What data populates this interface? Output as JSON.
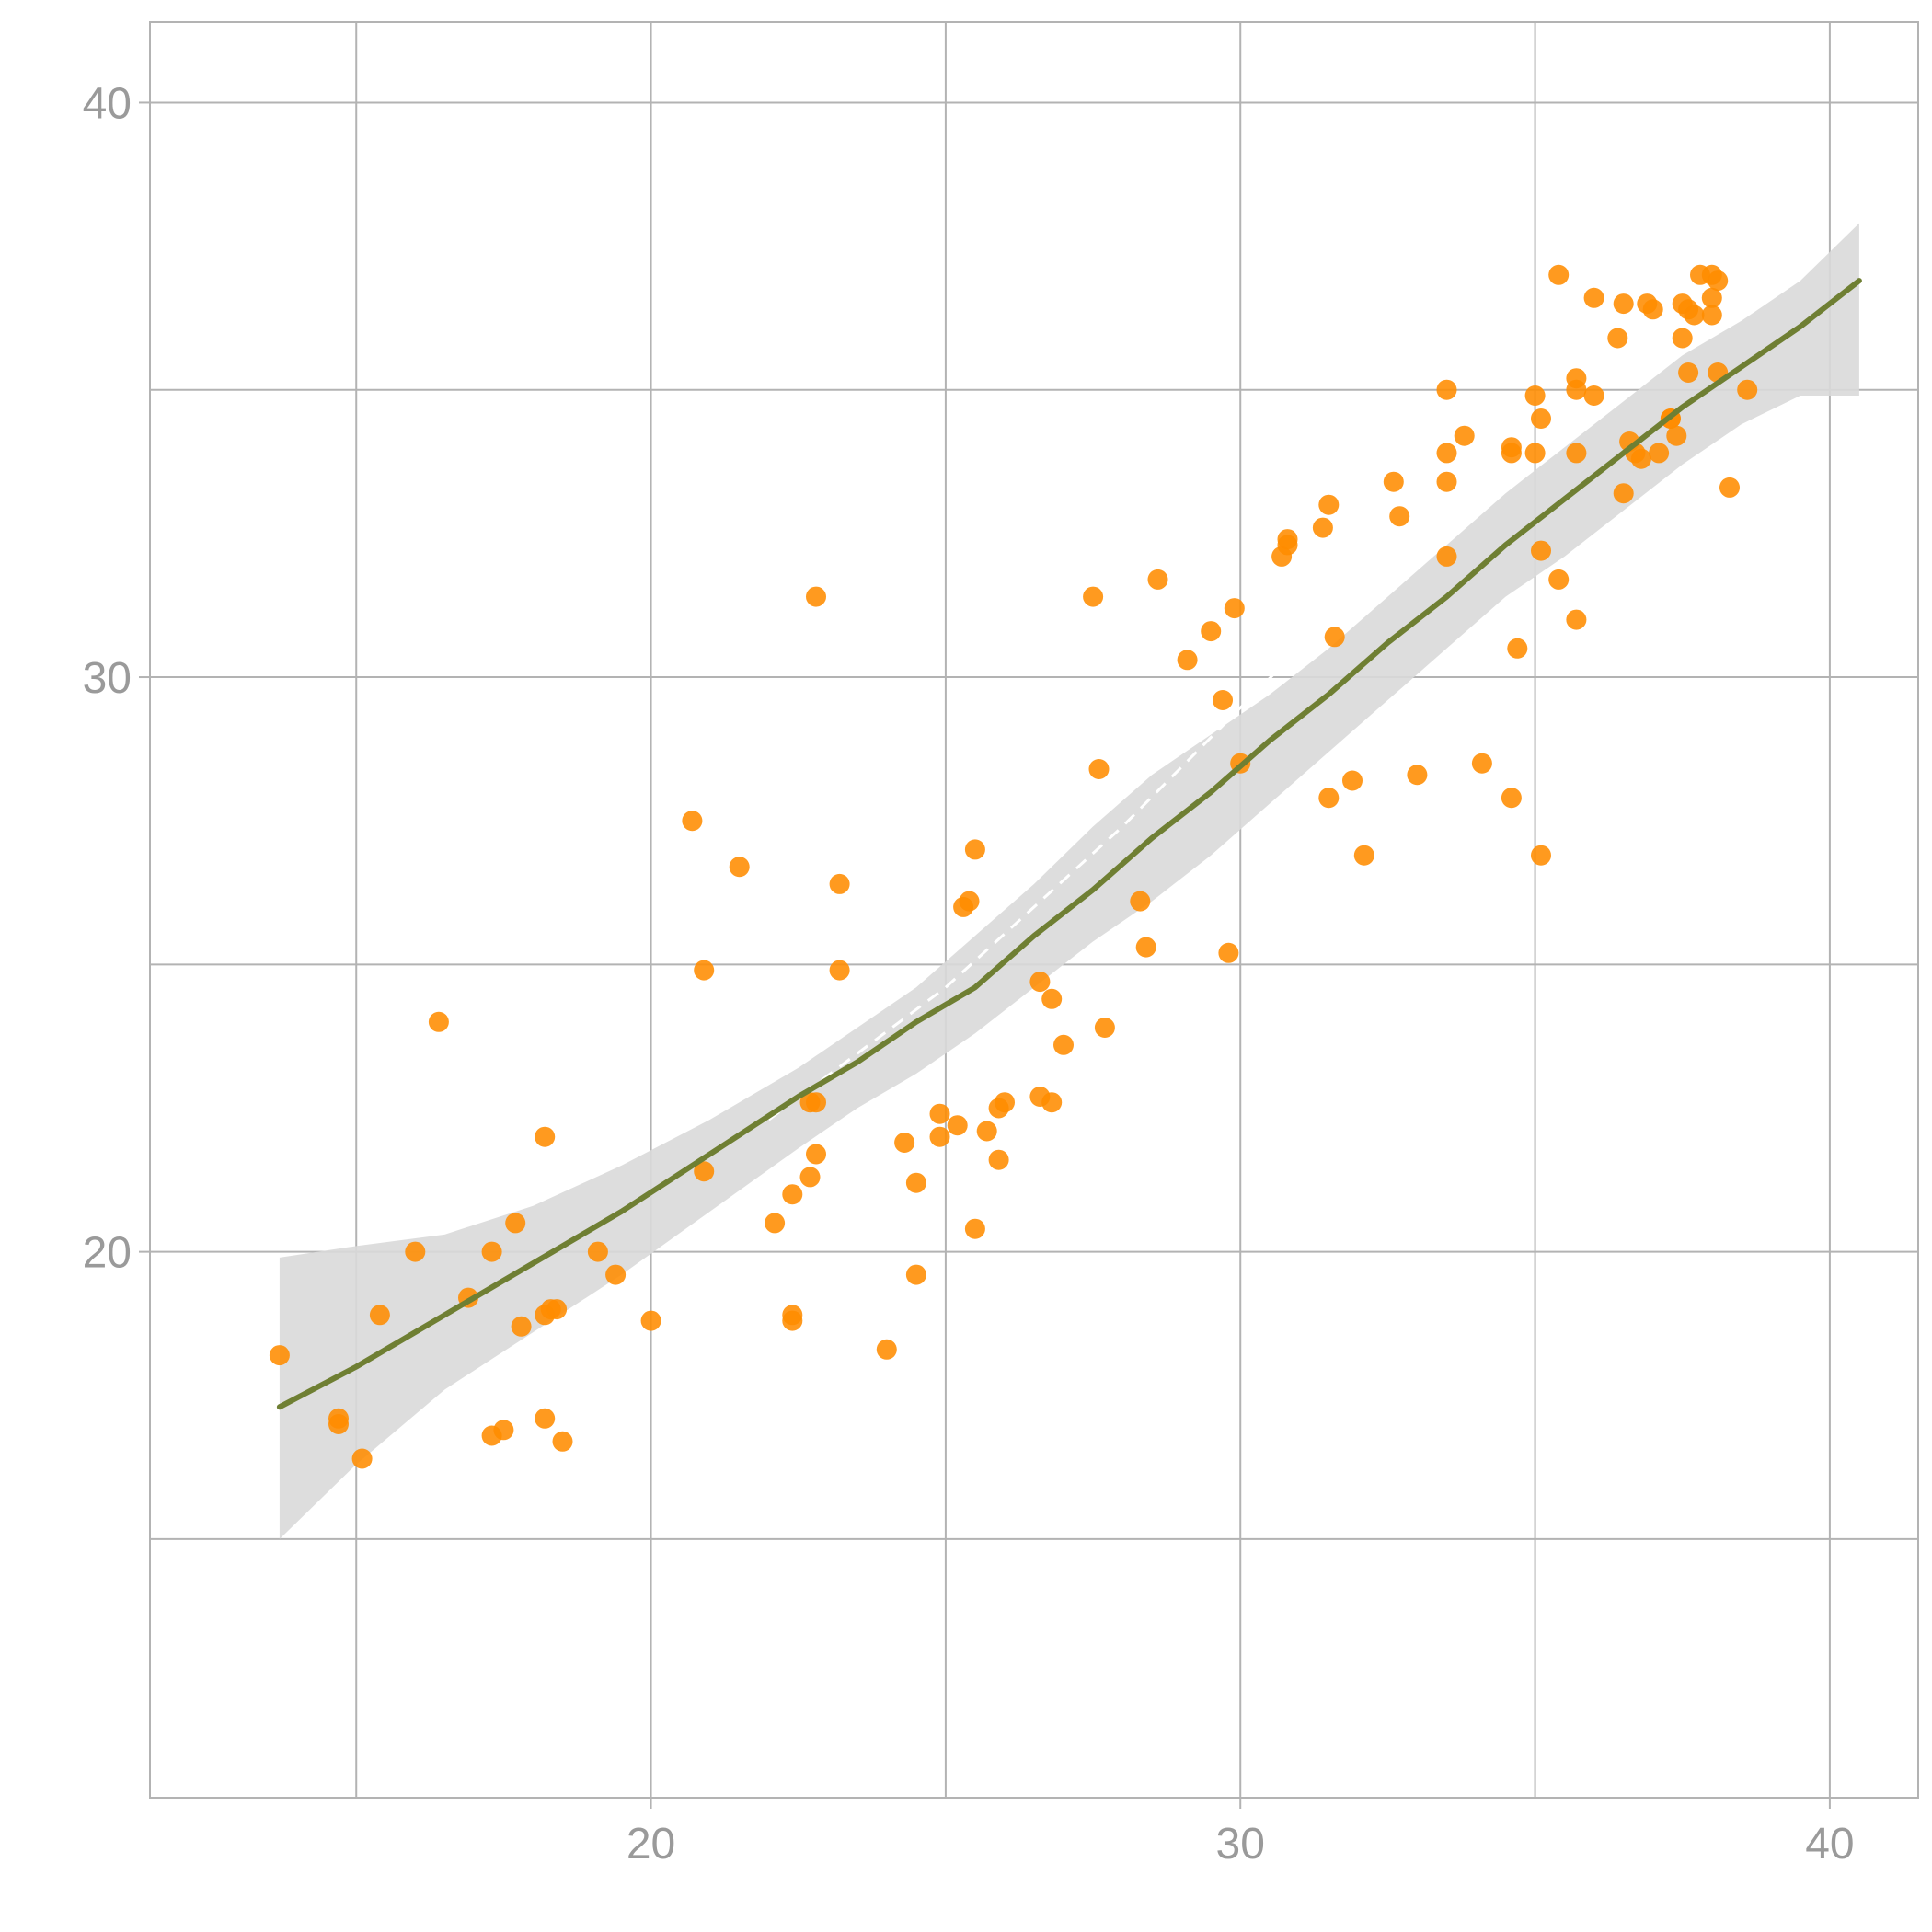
{
  "chart_data": {
    "type": "scatter",
    "title": "",
    "xlabel": "",
    "ylabel": "",
    "xlim": [
      11.5,
      41.5
    ],
    "ylim": [
      10.5,
      41.4
    ],
    "x_ticks": [
      20,
      30,
      40
    ],
    "x_tick_labels": [
      "20",
      "30",
      "40"
    ],
    "y_ticks": [
      20,
      30,
      40
    ],
    "y_tick_labels": [
      "20",
      "30",
      "40"
    ],
    "grid": true,
    "legend": "none",
    "colors": {
      "points": "#ff8c00",
      "smooth_line": "#6f7f33",
      "confidence_band": "#d9d9d9",
      "reference_line": "#ffffff",
      "grid": "#b3b3b3"
    },
    "series": [
      {
        "type": "scatter",
        "x": [
          13.7,
          14.7,
          14.7,
          15.1,
          15.4,
          16.0,
          16.4,
          16.9,
          17.3,
          17.3,
          17.5,
          17.7,
          17.8,
          18.2,
          18.2,
          18.2,
          18.3,
          18.4,
          18.5,
          19.1,
          19.4,
          20.0,
          20.7,
          20.9,
          20.9,
          21.5,
          22.1,
          22.4,
          22.4,
          22.4,
          22.7,
          22.7,
          22.8,
          22.8,
          22.8,
          23.2,
          23.2,
          24.0,
          24.3,
          24.5,
          24.5,
          24.9,
          24.9,
          25.2,
          25.3,
          25.4,
          25.5,
          25.5,
          25.7,
          25.9,
          25.9,
          26.0,
          26.6,
          26.6,
          26.8,
          26.8,
          27.0,
          27.5,
          27.6,
          27.7,
          28.3,
          28.4,
          28.6,
          29.1,
          29.5,
          29.7,
          29.8,
          29.9,
          30.0,
          30.7,
          30.8,
          30.8,
          31.4,
          31.5,
          31.5,
          31.6,
          31.9,
          32.1,
          32.6,
          32.7,
          33.0,
          33.5,
          33.5,
          33.5,
          33.5,
          33.8,
          34.1,
          34.6,
          34.6,
          34.6,
          34.7,
          35.0,
          35.0,
          35.1,
          35.1,
          35.1,
          35.4,
          35.4,
          35.7,
          35.7,
          35.7,
          35.7,
          36.0,
          36.0,
          36.4,
          36.5,
          36.5,
          36.6,
          36.7,
          36.8,
          36.9,
          37.0,
          37.1,
          37.3,
          37.3,
          37.4,
          37.5,
          37.5,
          37.6,
          37.6,
          37.7,
          37.8,
          38.0,
          38.0,
          38.0,
          38.1,
          38.1,
          38.3,
          38.6
        ],
        "y": [
          18.2,
          17.1,
          17.0,
          16.4,
          18.9,
          20.0,
          24.0,
          19.2,
          20.0,
          16.8,
          16.9,
          20.5,
          18.7,
          18.9,
          17.1,
          22.0,
          19.0,
          19.0,
          16.7,
          20.0,
          19.6,
          18.8,
          27.5,
          21.4,
          24.9,
          26.7,
          20.5,
          18.9,
          18.8,
          21.0,
          21.3,
          22.6,
          31.4,
          21.7,
          22.6,
          26.4,
          24.9,
          18.3,
          21.9,
          21.2,
          19.6,
          22.0,
          22.4,
          22.2,
          26.0,
          26.1,
          27.0,
          20.4,
          22.1,
          22.5,
          21.6,
          22.6,
          24.7,
          22.7,
          24.4,
          22.6,
          23.6,
          31.4,
          28.4,
          23.9,
          26.1,
          25.3,
          31.7,
          30.3,
          30.8,
          29.6,
          25.2,
          31.2,
          28.5,
          32.1,
          32.3,
          32.4,
          32.6,
          27.9,
          33.0,
          30.7,
          28.2,
          26.9,
          33.4,
          32.8,
          28.3,
          33.4,
          32.1,
          35.0,
          33.9,
          34.2,
          28.5,
          27.9,
          34.0,
          33.9,
          30.5,
          33.9,
          34.9,
          34.5,
          26.9,
          32.2,
          31.7,
          37.0,
          31.0,
          35.2,
          35.0,
          33.9,
          36.6,
          34.9,
          35.9,
          33.2,
          36.5,
          34.1,
          33.9,
          33.8,
          36.5,
          36.4,
          33.9,
          34.5,
          34.5,
          34.2,
          36.5,
          35.9,
          36.4,
          35.3,
          36.3,
          37.0,
          36.6,
          36.3,
          37.0,
          35.3,
          36.9,
          33.3,
          35.0
        ],
        "name": ""
      },
      {
        "type": "line",
        "x": [
          13.7,
          15.0,
          16.5,
          18.0,
          19.5,
          21.0,
          22.5,
          23.5,
          24.5,
          25.5,
          26.5,
          27.5,
          28.5,
          29.5,
          30.5,
          31.5,
          32.5,
          33.5,
          34.5,
          35.5,
          36.5,
          37.5,
          38.5,
          39.5,
          40.5
        ],
        "y": [
          17.3,
          18.0,
          18.9,
          19.8,
          20.7,
          21.7,
          22.7,
          23.3,
          24.0,
          24.6,
          25.5,
          26.3,
          27.2,
          28.0,
          28.9,
          29.7,
          30.6,
          31.4,
          32.3,
          33.1,
          33.9,
          34.7,
          35.4,
          36.1,
          36.9
        ],
        "name": ""
      }
    ],
    "band": {
      "x": [
        13.7,
        15.0,
        16.5,
        18.0,
        19.5,
        21.0,
        22.5,
        23.5,
        24.5,
        25.5,
        26.5,
        27.5,
        28.5,
        29.5,
        30.5,
        31.5,
        32.5,
        33.5,
        34.5,
        35.5,
        36.5,
        37.5,
        38.5,
        39.5,
        40.5
      ],
      "upper": [
        19.9,
        20.1,
        20.3,
        20.8,
        21.5,
        22.3,
        23.2,
        23.9,
        24.6,
        25.5,
        26.4,
        27.4,
        28.3,
        29.0,
        29.7,
        30.5,
        31.4,
        32.3,
        33.2,
        34.0,
        34.8,
        35.6,
        36.2,
        36.9,
        37.9
      ],
      "lower": [
        15.0,
        16.3,
        17.6,
        18.6,
        19.6,
        20.7,
        21.8,
        22.5,
        23.1,
        23.8,
        24.6,
        25.4,
        26.1,
        26.9,
        27.8,
        28.7,
        29.6,
        30.5,
        31.4,
        32.1,
        32.9,
        33.7,
        34.4,
        34.9,
        34.9
      ]
    },
    "reference_line": {
      "x": [
        22.0,
        25.0,
        28.0,
        31.0,
        34.0
      ],
      "y": [
        22.3,
        24.6,
        27.4,
        30.5,
        33.7
      ]
    }
  }
}
